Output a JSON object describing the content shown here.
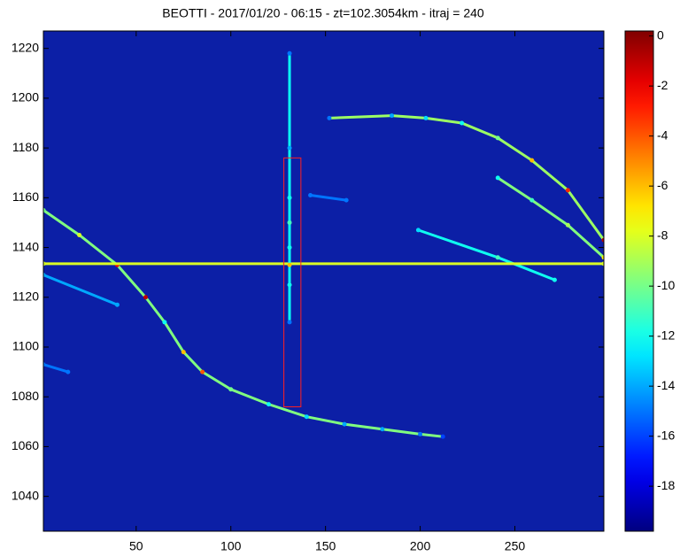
{
  "chart_data": {
    "type": "heatmap",
    "title": "BEOTTI - 2017/01/20 - 06:15 - zt=102.3054km - itraj = 240",
    "colormap": "jet",
    "background_color": "#0c1fa6",
    "xlim": [
      1,
      297
    ],
    "ylim": [
      1026,
      1227
    ],
    "xticks": [
      50,
      100,
      150,
      200,
      250
    ],
    "yticks": [
      1040,
      1060,
      1080,
      1100,
      1120,
      1140,
      1160,
      1180,
      1200,
      1220
    ],
    "clim": [
      -19.8,
      0.2
    ],
    "cticks": [
      0,
      -2,
      -4,
      -6,
      -8,
      -10,
      -12,
      -14,
      -16,
      -18
    ],
    "traces": [
      {
        "x": [
          1,
          20,
          40,
          55,
          65,
          75,
          85,
          100,
          120,
          140,
          160,
          180,
          200,
          212
        ],
        "y": [
          1155,
          1145,
          1133,
          1120,
          1110,
          1098,
          1090,
          1083,
          1077,
          1072,
          1069,
          1067,
          1065,
          1064
        ],
        "values": [
          -10,
          -8,
          -2,
          -1,
          -12,
          -6,
          -4,
          -10,
          -12,
          -13,
          -14,
          -14,
          -15,
          -16
        ]
      },
      {
        "x": [
          152,
          185,
          203,
          222,
          241,
          259,
          278,
          297
        ],
        "y": [
          1192,
          1193,
          1192,
          1190,
          1184,
          1175,
          1163,
          1143
        ],
        "values": [
          -15,
          -14,
          -13,
          -12,
          -10,
          -6,
          -3,
          -1
        ]
      },
      {
        "x": [
          241,
          259,
          278,
          297
        ],
        "y": [
          1168,
          1159,
          1149,
          1136
        ],
        "values": [
          -12,
          -11,
          -9,
          -7
        ]
      },
      {
        "x": [
          199,
          241,
          271
        ],
        "y": [
          1147,
          1136,
          1127
        ],
        "values": [
          -13,
          -11,
          -12
        ]
      },
      {
        "x": [
          1,
          297
        ],
        "y": [
          1133.5,
          1133.5
        ],
        "values": [
          -8,
          -8
        ]
      },
      {
        "x": [
          131,
          131,
          131,
          131,
          131,
          131,
          131,
          131
        ],
        "y": [
          1218,
          1180,
          1160,
          1150,
          1140,
          1133,
          1125,
          1110
        ],
        "values": [
          -15,
          -14,
          -12,
          -11,
          -12,
          -6,
          -12,
          -15
        ]
      },
      {
        "x": [
          1,
          40
        ],
        "y": [
          1129,
          1117
        ],
        "values": [
          -14,
          -14
        ]
      },
      {
        "x": [
          1,
          14
        ],
        "y": [
          1093,
          1090
        ],
        "values": [
          -15,
          -15
        ]
      },
      {
        "x": [
          142,
          161
        ],
        "y": [
          1161,
          1159
        ],
        "values": [
          -15,
          -15
        ]
      }
    ],
    "box": {
      "x": [
        128,
        137
      ],
      "y": [
        1076,
        1176
      ],
      "color": "#ff2020"
    }
  }
}
